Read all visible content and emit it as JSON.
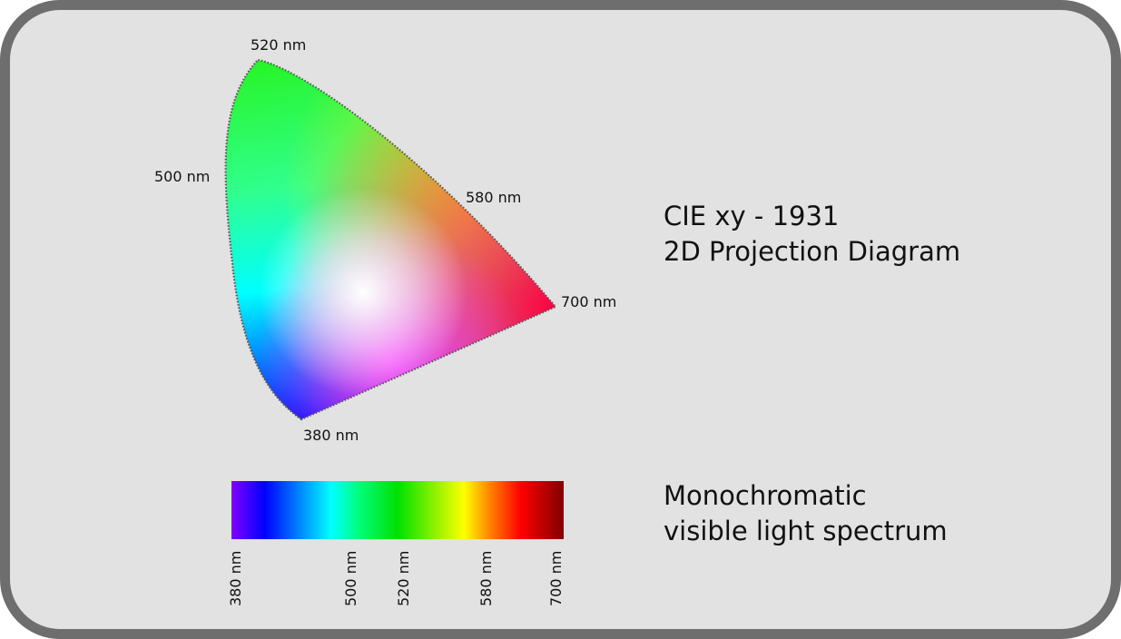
{
  "diagram": {
    "title_line1": "CIE xy - 1931",
    "title_line2": "2D Projection Diagram",
    "locus_labels": {
      "nm520": "520 nm",
      "nm500": "500 nm",
      "nm580": "580 nm",
      "nm700": "700 nm",
      "nm380": "380 nm"
    },
    "boundary_style": "dotted",
    "colors": {
      "green": "#2cf52c",
      "cyan": "#00ffff",
      "blue": "#0000ff",
      "magenta": "#ff40ff",
      "red": "#ff0040",
      "yellow": "#e8e800",
      "white_point": "#ffffff"
    }
  },
  "spectrum": {
    "title_line1": "Monochromatic",
    "title_line2": "visible light spectrum",
    "tick_labels": [
      "380 nm",
      "500 nm",
      "520 nm",
      "580 nm",
      "700 nm"
    ],
    "gradient_colors": [
      "#8000ff",
      "#0000ff",
      "#00ffff",
      "#00ff80",
      "#00e000",
      "#ffff00",
      "#ff8000",
      "#ff0000",
      "#800000"
    ]
  },
  "frame": {
    "background": "#e2e2e2",
    "border_color": "#6e6e6e"
  }
}
